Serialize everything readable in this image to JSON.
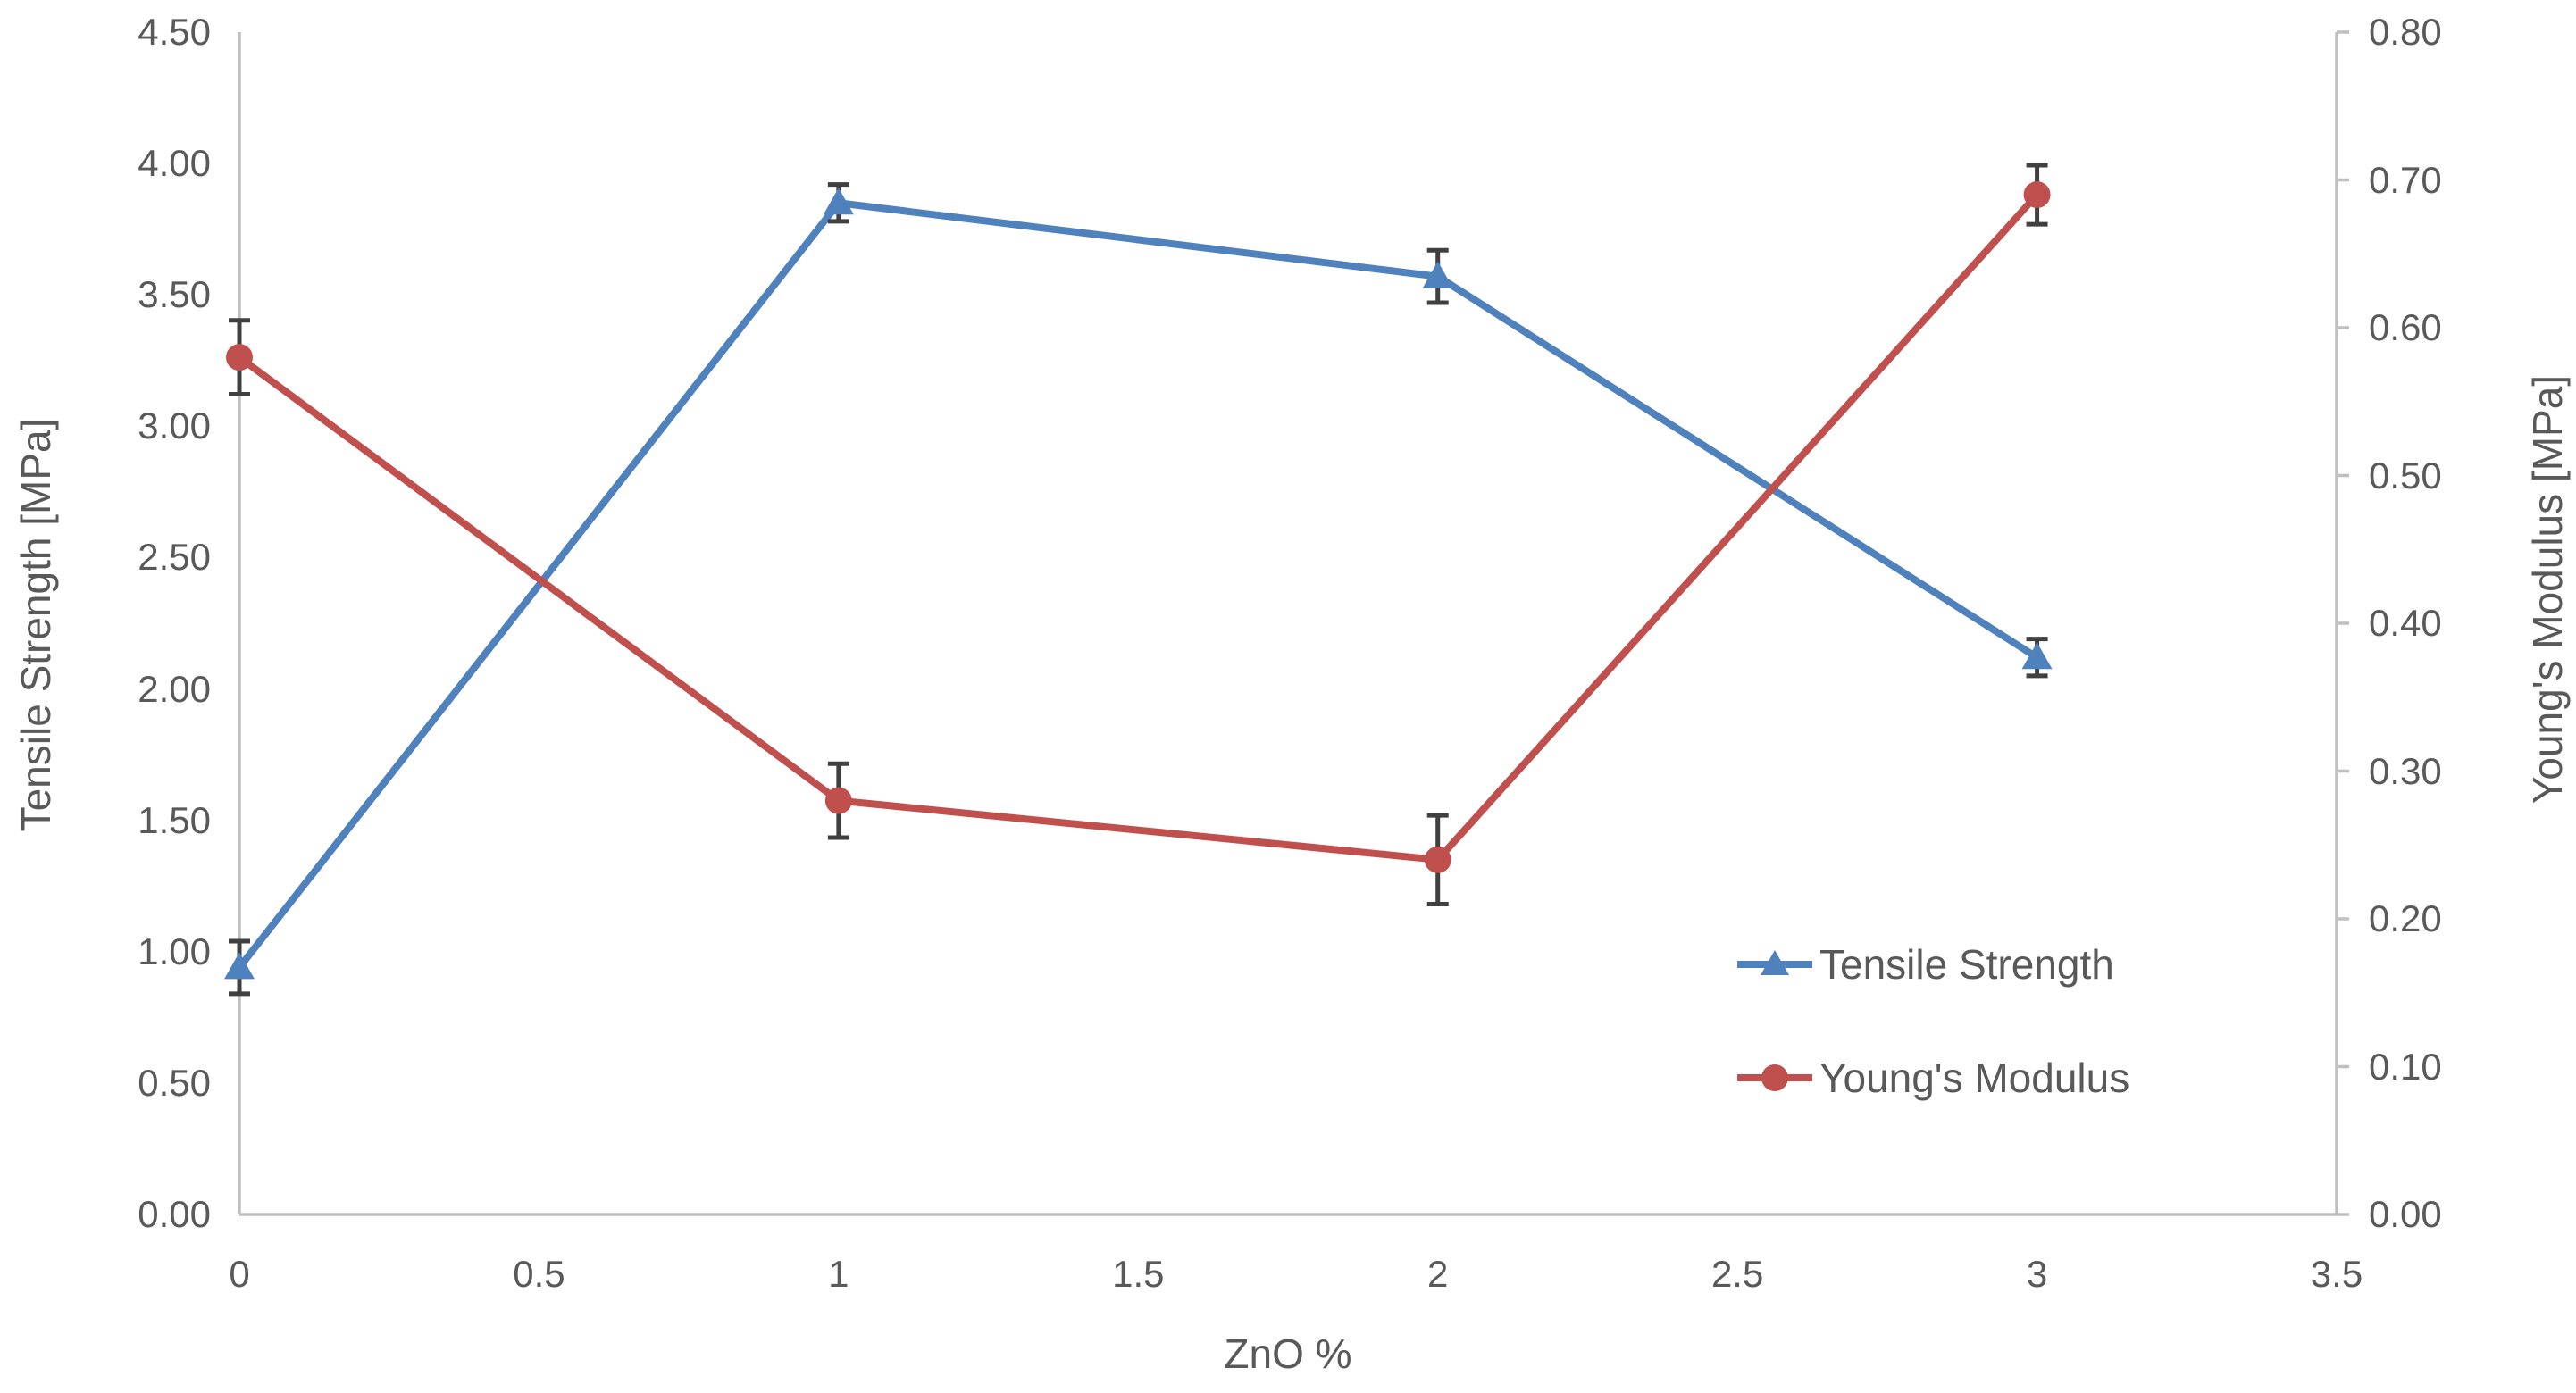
{
  "figure": {
    "background": "#ffffff"
  },
  "chart_data": {
    "type": "line",
    "title": "",
    "xlabel": "ZnO %",
    "grid": false,
    "legend_position": "inside-lower-right",
    "axis_line_color": "#BFBFBF",
    "text_color": "#595959",
    "error_bar_color": "#404040",
    "x_axis": {
      "min": 0,
      "max": 3.5,
      "tick_step": 0.5,
      "tick_labels": [
        "0",
        "0.5",
        "1",
        "1.5",
        "2",
        "2.5",
        "3",
        "3.5"
      ]
    },
    "left_axis": {
      "label": "Tensile Strength [MPa]",
      "min": 0,
      "max": 4.5,
      "tick_step": 0.5,
      "tick_labels": [
        "0.00",
        "0.50",
        "1.00",
        "1.50",
        "2.00",
        "2.50",
        "3.00",
        "3.50",
        "4.00",
        "4.50"
      ]
    },
    "right_axis": {
      "label": "Young's Modulus [MPa]",
      "min": 0,
      "max": 0.8,
      "tick_step": 0.1,
      "tick_labels": [
        "0.00",
        "0.10",
        "0.20",
        "0.30",
        "0.40",
        "0.50",
        "0.60",
        "0.70",
        "0.80"
      ]
    },
    "x": [
      0,
      1,
      2,
      3
    ],
    "series": [
      {
        "name": "Tensile Strength",
        "axis": "left",
        "color": "#4F81BD",
        "marker": "triangle",
        "values": [
          0.94,
          3.85,
          3.57,
          2.12
        ],
        "error_bars": [
          0.1,
          0.07,
          0.1,
          0.07
        ]
      },
      {
        "name": "Young's Modulus",
        "axis": "right",
        "color": "#C0504D",
        "marker": "circle",
        "values": [
          0.58,
          0.28,
          0.24,
          0.69
        ],
        "error_bars": [
          0.025,
          0.025,
          0.03,
          0.02
        ]
      }
    ]
  }
}
